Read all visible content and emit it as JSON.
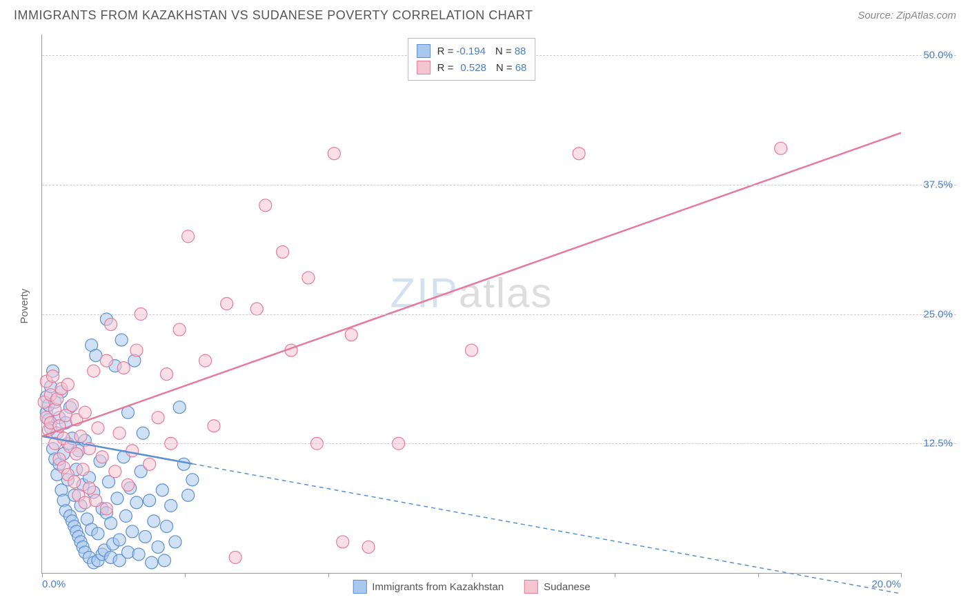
{
  "header": {
    "title": "IMMIGRANTS FROM KAZAKHSTAN VS SUDANESE POVERTY CORRELATION CHART",
    "source_prefix": "Source: ",
    "source_name": "ZipAtlas.com"
  },
  "watermark": {
    "part1": "ZIP",
    "part2": "atlas"
  },
  "y_axis": {
    "label": "Poverty"
  },
  "chart": {
    "type": "scatter",
    "xlim": [
      0,
      20
    ],
    "ylim": [
      0,
      52
    ],
    "x_ticks": [
      0,
      3.33,
      6.67,
      10,
      13.33,
      16.67,
      20
    ],
    "x_tick_labels": [
      "0.0%",
      "",
      "",
      "",
      "",
      "",
      "20.0%"
    ],
    "y_grid": [
      12.5,
      25,
      37.5,
      50
    ],
    "y_grid_labels": [
      "12.5%",
      "25.0%",
      "37.5%",
      "50.0%"
    ],
    "background_color": "#ffffff",
    "grid_color": "#cccccc",
    "axis_color": "#999999",
    "tick_label_color": "#4a7ec7",
    "tick_fontsize": 15,
    "series": [
      {
        "name": "Immigrants from Kazakhstan",
        "fill": "#a9c8ed",
        "stroke": "#5b8fd0",
        "fill_opacity": 0.55,
        "marker_radius": 9,
        "R": "-0.194",
        "N": "88",
        "trend": {
          "x1": 0,
          "y1": 13.2,
          "x2": 20,
          "y2": -2.0,
          "solid_until_x": 3.5
        },
        "points": [
          [
            0.1,
            17.0
          ],
          [
            0.1,
            15.5
          ],
          [
            0.15,
            14.8
          ],
          [
            0.15,
            16.2
          ],
          [
            0.2,
            14.0
          ],
          [
            0.2,
            18.0
          ],
          [
            0.25,
            12.0
          ],
          [
            0.25,
            19.5
          ],
          [
            0.3,
            11.0
          ],
          [
            0.3,
            16.5
          ],
          [
            0.35,
            9.5
          ],
          [
            0.35,
            13.5
          ],
          [
            0.4,
            15.0
          ],
          [
            0.4,
            10.5
          ],
          [
            0.45,
            8.0
          ],
          [
            0.45,
            17.5
          ],
          [
            0.5,
            11.5
          ],
          [
            0.5,
            7.0
          ],
          [
            0.55,
            14.5
          ],
          [
            0.55,
            6.0
          ],
          [
            0.6,
            12.5
          ],
          [
            0.6,
            9.0
          ],
          [
            0.65,
            5.5
          ],
          [
            0.65,
            16.0
          ],
          [
            0.7,
            5.0
          ],
          [
            0.7,
            13.0
          ],
          [
            0.75,
            4.5
          ],
          [
            0.75,
            7.5
          ],
          [
            0.8,
            4.0
          ],
          [
            0.8,
            10.0
          ],
          [
            0.85,
            3.5
          ],
          [
            0.85,
            11.8
          ],
          [
            0.9,
            3.0
          ],
          [
            0.9,
            6.5
          ],
          [
            0.95,
            8.5
          ],
          [
            0.95,
            2.5
          ],
          [
            1.0,
            2.0
          ],
          [
            1.0,
            12.8
          ],
          [
            1.05,
            5.2
          ],
          [
            1.1,
            1.5
          ],
          [
            1.1,
            9.2
          ],
          [
            1.15,
            22.0
          ],
          [
            1.15,
            4.2
          ],
          [
            1.2,
            1.0
          ],
          [
            1.2,
            7.8
          ],
          [
            1.25,
            21.0
          ],
          [
            1.3,
            3.8
          ],
          [
            1.3,
            1.2
          ],
          [
            1.35,
            10.8
          ],
          [
            1.4,
            6.2
          ],
          [
            1.4,
            1.8
          ],
          [
            1.45,
            2.2
          ],
          [
            1.5,
            24.5
          ],
          [
            1.5,
            5.8
          ],
          [
            1.55,
            8.8
          ],
          [
            1.6,
            4.8
          ],
          [
            1.6,
            1.5
          ],
          [
            1.65,
            2.8
          ],
          [
            1.7,
            20.0
          ],
          [
            1.75,
            7.2
          ],
          [
            1.8,
            3.2
          ],
          [
            1.8,
            1.2
          ],
          [
            1.85,
            22.5
          ],
          [
            1.9,
            11.2
          ],
          [
            1.95,
            5.5
          ],
          [
            2.0,
            2.0
          ],
          [
            2.05,
            8.2
          ],
          [
            2.1,
            4.0
          ],
          [
            2.15,
            20.5
          ],
          [
            2.2,
            6.8
          ],
          [
            2.25,
            1.8
          ],
          [
            2.3,
            9.8
          ],
          [
            2.4,
            3.5
          ],
          [
            2.5,
            7.0
          ],
          [
            2.55,
            1.0
          ],
          [
            2.6,
            5.0
          ],
          [
            2.7,
            2.5
          ],
          [
            2.8,
            8.0
          ],
          [
            2.85,
            1.2
          ],
          [
            2.9,
            4.5
          ],
          [
            3.0,
            6.5
          ],
          [
            3.1,
            3.0
          ],
          [
            3.2,
            16.0
          ],
          [
            3.3,
            10.5
          ],
          [
            3.4,
            7.5
          ],
          [
            3.5,
            9.0
          ],
          [
            2.0,
            15.5
          ],
          [
            2.35,
            13.5
          ]
        ]
      },
      {
        "name": "Sudanese",
        "fill": "#f5c5d1",
        "stroke": "#e57b9a",
        "fill_opacity": 0.55,
        "marker_radius": 9,
        "R": "0.528",
        "N": "68",
        "trend": {
          "x1": 0,
          "y1": 13.2,
          "x2": 20,
          "y2": 42.5,
          "solid_until_x": 20
        },
        "points": [
          [
            0.05,
            16.5
          ],
          [
            0.1,
            15.0
          ],
          [
            0.1,
            18.5
          ],
          [
            0.15,
            13.8
          ],
          [
            0.2,
            17.2
          ],
          [
            0.2,
            14.5
          ],
          [
            0.25,
            19.0
          ],
          [
            0.3,
            15.8
          ],
          [
            0.3,
            12.5
          ],
          [
            0.35,
            16.8
          ],
          [
            0.4,
            14.2
          ],
          [
            0.4,
            11.0
          ],
          [
            0.45,
            17.8
          ],
          [
            0.5,
            13.0
          ],
          [
            0.5,
            10.2
          ],
          [
            0.55,
            15.2
          ],
          [
            0.6,
            18.2
          ],
          [
            0.6,
            9.5
          ],
          [
            0.65,
            12.2
          ],
          [
            0.7,
            16.2
          ],
          [
            0.75,
            8.8
          ],
          [
            0.8,
            14.8
          ],
          [
            0.8,
            11.5
          ],
          [
            0.85,
            7.5
          ],
          [
            0.9,
            13.2
          ],
          [
            0.95,
            10.0
          ],
          [
            1.0,
            6.8
          ],
          [
            1.0,
            15.5
          ],
          [
            1.1,
            12.0
          ],
          [
            1.1,
            8.2
          ],
          [
            1.2,
            19.5
          ],
          [
            1.25,
            7.0
          ],
          [
            1.3,
            14.0
          ],
          [
            1.4,
            11.2
          ],
          [
            1.5,
            20.5
          ],
          [
            1.5,
            6.2
          ],
          [
            1.6,
            24.0
          ],
          [
            1.7,
            9.8
          ],
          [
            1.8,
            13.5
          ],
          [
            1.9,
            19.8
          ],
          [
            2.0,
            8.5
          ],
          [
            2.1,
            11.8
          ],
          [
            2.2,
            21.5
          ],
          [
            2.3,
            25.0
          ],
          [
            2.5,
            10.5
          ],
          [
            2.7,
            15.0
          ],
          [
            2.9,
            19.2
          ],
          [
            3.0,
            12.5
          ],
          [
            3.2,
            23.5
          ],
          [
            3.4,
            32.5
          ],
          [
            3.8,
            20.5
          ],
          [
            4.0,
            14.2
          ],
          [
            4.3,
            26.0
          ],
          [
            4.5,
            1.5
          ],
          [
            5.0,
            25.5
          ],
          [
            5.2,
            35.5
          ],
          [
            5.6,
            31.0
          ],
          [
            5.8,
            21.5
          ],
          [
            6.2,
            28.5
          ],
          [
            6.4,
            12.5
          ],
          [
            6.8,
            40.5
          ],
          [
            7.0,
            3.0
          ],
          [
            7.2,
            23.0
          ],
          [
            7.6,
            2.5
          ],
          [
            8.3,
            12.5
          ],
          [
            10.0,
            21.5
          ],
          [
            12.5,
            40.5
          ],
          [
            17.2,
            41.0
          ]
        ]
      }
    ]
  }
}
